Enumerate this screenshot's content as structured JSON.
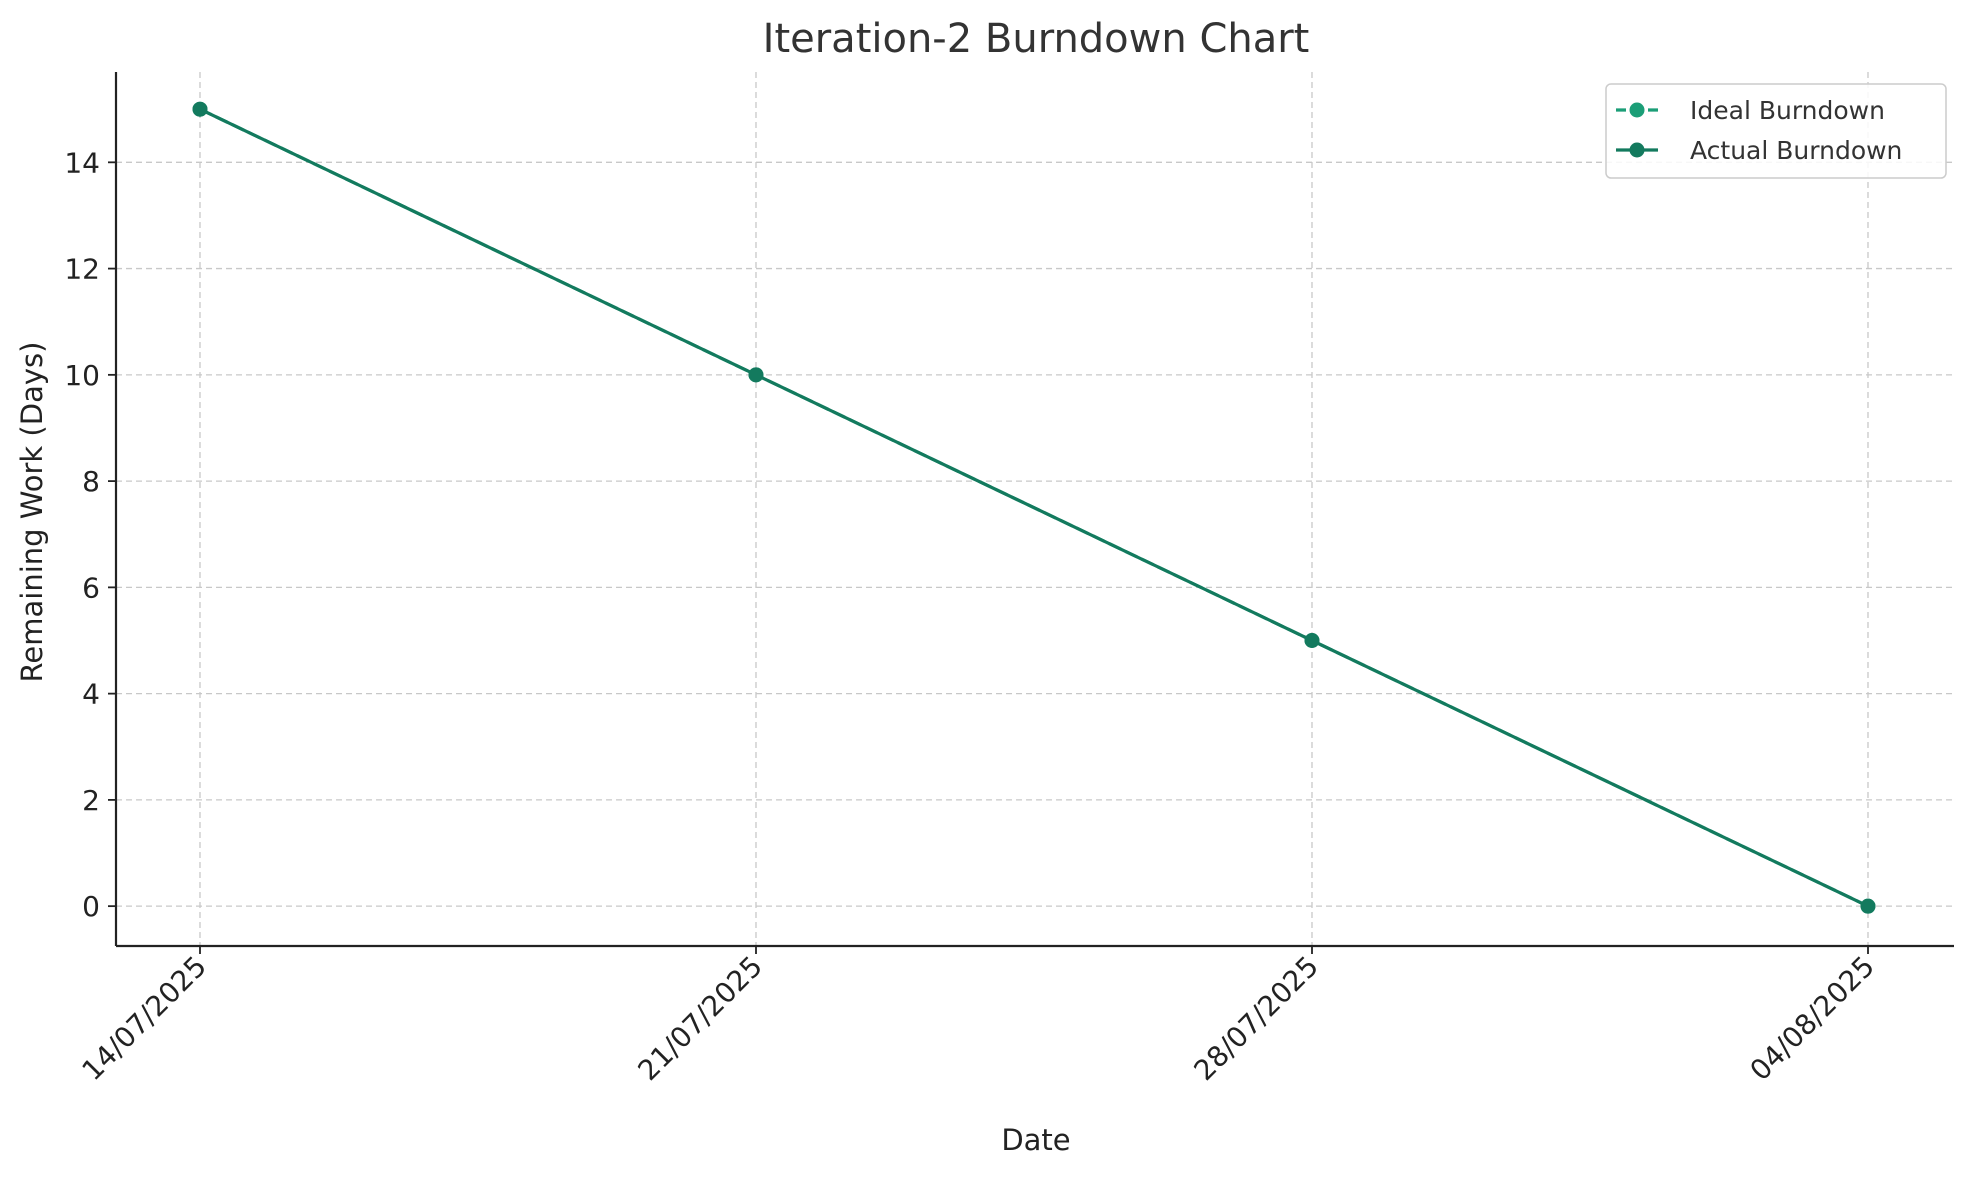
{
  "chart_data": {
    "type": "line",
    "title": "Iteration-2 Burndown Chart",
    "xlabel": "Date",
    "ylabel": "Remaining Work (Days)",
    "x": [
      "14/07/2025",
      "21/07/2025",
      "28/07/2025",
      "04/08/2025"
    ],
    "ylim": [
      -0.75,
      15.7
    ],
    "yticks": [
      0,
      2,
      4,
      6,
      8,
      10,
      12,
      14
    ],
    "grid": true,
    "legend_position": "top-right",
    "series": [
      {
        "name": "Ideal Burndown",
        "values": [
          15,
          10,
          5,
          0
        ],
        "color": "#1b9e77",
        "linestyle": "dashed",
        "marker": "circle"
      },
      {
        "name": "Actual Burndown",
        "values": [
          15,
          10,
          5,
          0
        ],
        "color": "#137a5e",
        "linestyle": "solid",
        "marker": "circle"
      }
    ]
  }
}
